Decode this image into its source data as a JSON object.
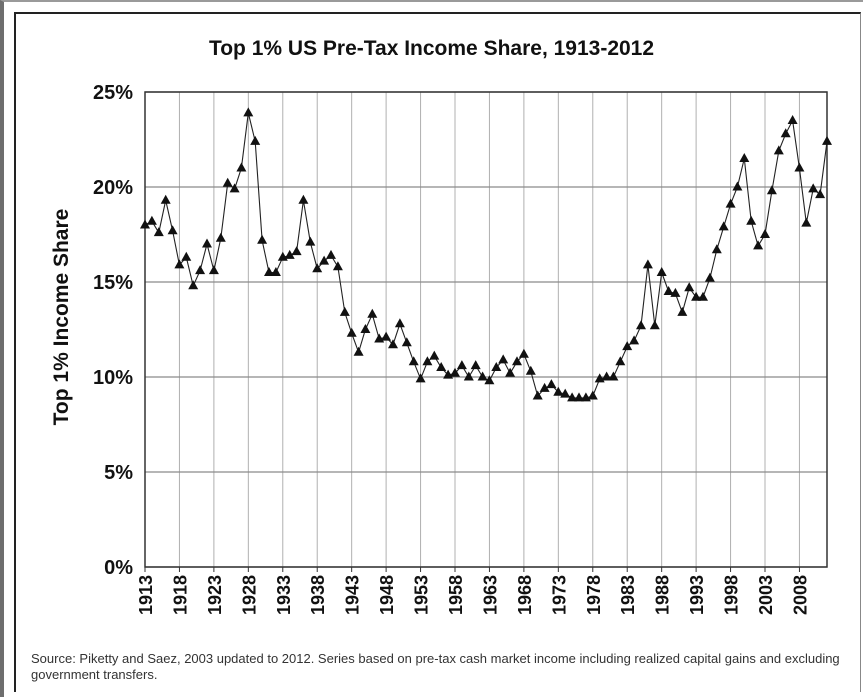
{
  "chart_data": {
    "type": "line",
    "title": "Top 1% US Pre-Tax Income Share, 1913-2012",
    "xlabel": "",
    "ylabel": "Top 1% Income Share",
    "xlim": [
      1913,
      2012
    ],
    "ylim": [
      0,
      25
    ],
    "yticks": [
      "0%",
      "5%",
      "10%",
      "15%",
      "20%",
      "25%"
    ],
    "xticks": [
      "1913",
      "1918",
      "1923",
      "1928",
      "1933",
      "1938",
      "1943",
      "1948",
      "1953",
      "1958",
      "1963",
      "1968",
      "1973",
      "1978",
      "1983",
      "1988",
      "1993",
      "1998",
      "2003",
      "2008"
    ],
    "grid": true,
    "marker": "triangle",
    "series": [
      {
        "x": [
          1913,
          1914,
          1915,
          1916,
          1917,
          1918,
          1919,
          1920,
          1921,
          1922,
          1923,
          1924,
          1925,
          1926,
          1927,
          1928,
          1929,
          1930,
          1931,
          1932,
          1933,
          1934,
          1935,
          1936,
          1937,
          1938,
          1939,
          1940,
          1941,
          1942,
          1943,
          1944,
          1945,
          1946,
          1947,
          1948,
          1949,
          1950,
          1951,
          1952,
          1953,
          1954,
          1955,
          1956,
          1957,
          1958,
          1959,
          1960,
          1961,
          1962,
          1963,
          1964,
          1965,
          1966,
          1967,
          1968,
          1969,
          1970,
          1971,
          1972,
          1973,
          1974,
          1975,
          1976,
          1977,
          1978,
          1979,
          1980,
          1981,
          1982,
          1983,
          1984,
          1985,
          1986,
          1987,
          1988,
          1989,
          1990,
          1991,
          1992,
          1993,
          1994,
          1995,
          1996,
          1997,
          1998,
          1999,
          2000,
          2001,
          2002,
          2003,
          2004,
          2005,
          2006,
          2007,
          2008,
          2009,
          2010,
          2011,
          2012
        ],
        "values": [
          18.0,
          18.2,
          17.6,
          19.3,
          17.7,
          15.9,
          16.3,
          14.8,
          15.6,
          17.0,
          15.6,
          17.3,
          20.2,
          19.9,
          21.0,
          23.9,
          22.4,
          17.2,
          15.5,
          15.5,
          16.3,
          16.4,
          16.6,
          19.3,
          17.1,
          15.7,
          16.1,
          16.4,
          15.8,
          13.4,
          12.3,
          11.3,
          12.5,
          13.3,
          12.0,
          12.1,
          11.7,
          12.8,
          11.8,
          10.8,
          9.9,
          10.8,
          11.1,
          10.5,
          10.1,
          10.2,
          10.6,
          10.0,
          10.6,
          10.0,
          9.8,
          10.5,
          10.9,
          10.2,
          10.8,
          11.2,
          10.3,
          9.0,
          9.4,
          9.6,
          9.2,
          9.1,
          8.9,
          8.9,
          8.9,
          9.0,
          9.9,
          10.0,
          10.0,
          10.8,
          11.6,
          11.9,
          12.7,
          15.9,
          12.7,
          15.5,
          14.5,
          14.4,
          13.4,
          14.7,
          14.2,
          14.2,
          15.2,
          16.7,
          17.9,
          19.1,
          20.0,
          21.5,
          18.2,
          16.9,
          17.5,
          19.8,
          21.9,
          22.8,
          23.5,
          21.0,
          18.1,
          19.9,
          19.6,
          22.4
        ]
      }
    ]
  },
  "source_note": "Source: Piketty and Saez, 2003 updated to 2012. Series based on pre-tax cash market income including realized capital gains and excluding government transfers."
}
